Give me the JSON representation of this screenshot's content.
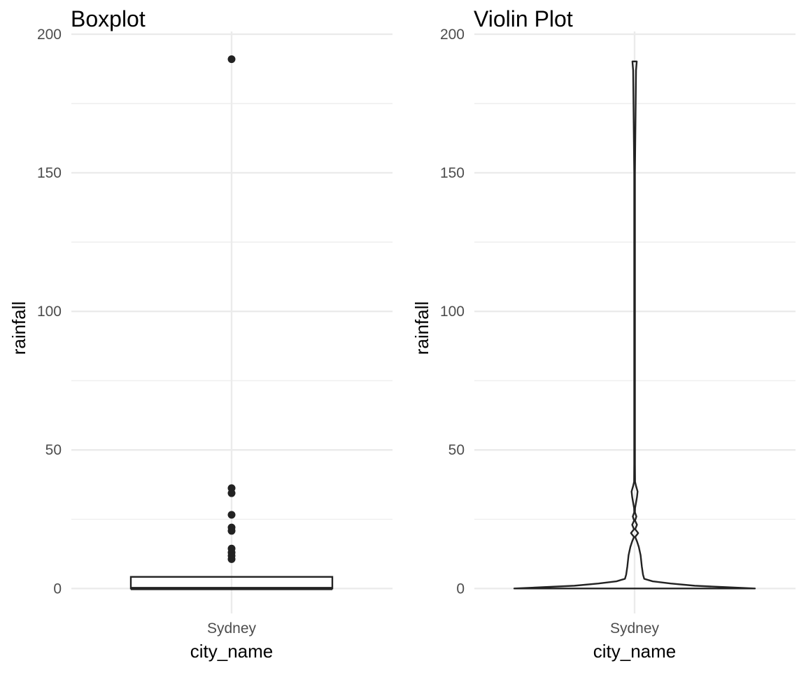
{
  "chart_data": [
    {
      "type": "box",
      "title": "Boxplot",
      "xlabel": "city_name",
      "ylabel": "rainfall",
      "categories": [
        "Sydney"
      ],
      "ylim": [
        -9,
        201
      ],
      "yticks": [
        0,
        50,
        100,
        150,
        200
      ],
      "grid": true,
      "box": {
        "category": "Sydney",
        "min": 0,
        "q1": 0,
        "median": 0,
        "q3": 4.2,
        "whisker_low": 0,
        "whisker_high": 4.2
      },
      "outliers": [
        191,
        36.2,
        34.4,
        26.6,
        22,
        20.8,
        14.4,
        13,
        11.8,
        10.6
      ]
    },
    {
      "type": "violin",
      "title": "Violin Plot",
      "xlabel": "city_name",
      "ylabel": "rainfall",
      "categories": [
        "Sydney"
      ],
      "ylim": [
        -9,
        201
      ],
      "yticks": [
        0,
        50,
        100,
        150,
        200
      ],
      "grid": true,
      "density": {
        "y": [
          0,
          0.5,
          1,
          1.8,
          2.6,
          3.5,
          5,
          8,
          12,
          15,
          17,
          18.6,
          20,
          21.4,
          23,
          24.5,
          26,
          27.5,
          29,
          31,
          33,
          35,
          37,
          38.5,
          45,
          60,
          100,
          150,
          187,
          190.2
        ],
        "width": [
          1,
          0.75,
          0.5,
          0.3,
          0.15,
          0.08,
          0.07,
          0.06,
          0.05,
          0.035,
          0.02,
          0.005,
          0.03,
          0.005,
          0.02,
          0.004,
          0.015,
          0.003,
          0.004,
          0.012,
          0.02,
          0.025,
          0.012,
          0.004,
          0.003,
          0.003,
          0.003,
          0.003,
          0.012,
          0.018
        ]
      }
    }
  ]
}
